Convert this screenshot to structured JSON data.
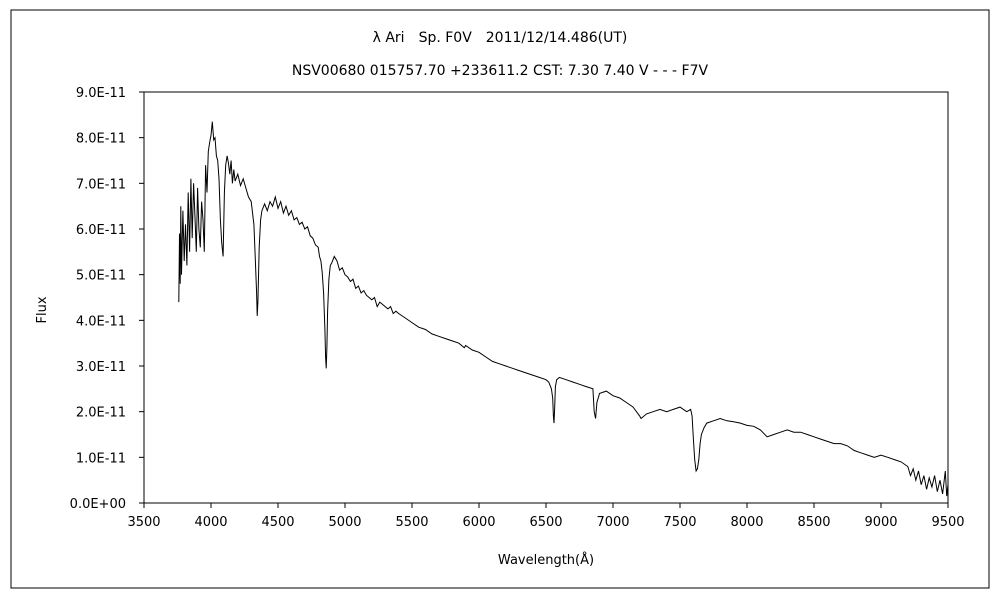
{
  "chart_data": {
    "type": "line",
    "title": "λ Ari　Sp. F0V　2011/12/14.486(UT)",
    "subtitle": "NSV00680 015757.70 +233611.2 CST: 7.30 7.40 V - - - F7V",
    "xlabel": "Wavelength(Å)",
    "ylabel": "Flux",
    "xlim": [
      3500,
      9500
    ],
    "ylim": [
      0,
      9e-11
    ],
    "grid": false,
    "legend": "none",
    "x_ticks": [
      3500,
      4000,
      4500,
      5000,
      5500,
      6000,
      6500,
      7000,
      7500,
      8000,
      8500,
      9000,
      9500
    ],
    "x_tick_labels": [
      "3500",
      "4000",
      "4500",
      "5000",
      "5500",
      "6000",
      "6500",
      "7000",
      "7500",
      "8000",
      "8500",
      "9000",
      "9500"
    ],
    "y_ticks": [
      0,
      1e-11,
      2e-11,
      3e-11,
      4e-11,
      5e-11,
      6e-11,
      7e-11,
      8e-11,
      9e-11
    ],
    "y_tick_labels": [
      "0.0E+00",
      "1.0E-11",
      "2.0E-11",
      "3.0E-11",
      "4.0E-11",
      "5.0E-11",
      "6.0E-11",
      "7.0E-11",
      "8.0E-11",
      "9.0E-11"
    ],
    "line_color": "#000000",
    "series": [
      {
        "x": [
          3760,
          3765,
          3770,
          3775,
          3780,
          3790,
          3800,
          3810,
          3820,
          3830,
          3840,
          3850,
          3860,
          3870,
          3880,
          3890,
          3900,
          3910,
          3920,
          3930,
          3940,
          3950,
          3960,
          3970,
          3980,
          3990,
          4000,
          4010,
          4020,
          4030,
          4040,
          4050,
          4060,
          4070,
          4080,
          4090,
          4100,
          4110,
          4120,
          4130,
          4140,
          4150,
          4160,
          4170,
          4180,
          4200,
          4220,
          4240,
          4260,
          4280,
          4300,
          4320,
          4330,
          4340,
          4345,
          4350,
          4360,
          4370,
          4380,
          4400,
          4420,
          4440,
          4460,
          4480,
          4500,
          4520,
          4540,
          4560,
          4580,
          4600,
          4620,
          4640,
          4660,
          4680,
          4700,
          4720,
          4740,
          4760,
          4780,
          4800,
          4810,
          4820,
          4830,
          4840,
          4850,
          4855,
          4860,
          4865,
          4870,
          4880,
          4890,
          4900,
          4920,
          4940,
          4960,
          4980,
          5000,
          5020,
          5040,
          5060,
          5080,
          5100,
          5120,
          5140,
          5160,
          5180,
          5200,
          5220,
          5240,
          5260,
          5280,
          5300,
          5320,
          5340,
          5360,
          5380,
          5400,
          5450,
          5500,
          5550,
          5600,
          5650,
          5700,
          5750,
          5800,
          5850,
          5890,
          5900,
          5950,
          6000,
          6050,
          6100,
          6150,
          6200,
          6250,
          6300,
          6350,
          6400,
          6450,
          6500,
          6520,
          6540,
          6550,
          6555,
          6560,
          6565,
          6570,
          6580,
          6600,
          6650,
          6700,
          6750,
          6800,
          6850,
          6860,
          6870,
          6880,
          6900,
          6950,
          7000,
          7050,
          7100,
          7150,
          7200,
          7210,
          7250,
          7300,
          7350,
          7400,
          7450,
          7500,
          7550,
          7580,
          7590,
          7600,
          7610,
          7620,
          7630,
          7640,
          7650,
          7660,
          7680,
          7700,
          7750,
          7800,
          7850,
          7900,
          7950,
          8000,
          8050,
          8100,
          8150,
          8200,
          8250,
          8300,
          8350,
          8400,
          8450,
          8500,
          8550,
          8600,
          8650,
          8700,
          8750,
          8800,
          8850,
          8900,
          8950,
          9000,
          9050,
          9100,
          9150,
          9200,
          9220,
          9240,
          9260,
          9280,
          9300,
          9320,
          9340,
          9360,
          9380,
          9400,
          9420,
          9440,
          9460,
          9480,
          9490,
          9500
        ],
        "y": [
          4.4e-11,
          5.9e-11,
          4.8e-11,
          6.5e-11,
          5e-11,
          6.4e-11,
          5.3e-11,
          6.1e-11,
          5.2e-11,
          6.8e-11,
          5.5e-11,
          7.1e-11,
          5.8e-11,
          7e-11,
          6.3e-11,
          5.5e-11,
          6.9e-11,
          6e-11,
          5.6e-11,
          6.6e-11,
          6.2e-11,
          5.5e-11,
          7.4e-11,
          6.8e-11,
          7.7e-11,
          7.9e-11,
          8.05e-11,
          8.35e-11,
          7.95e-11,
          8e-11,
          7.6e-11,
          7.5e-11,
          7.1e-11,
          6.2e-11,
          5.7e-11,
          5.4e-11,
          6.8e-11,
          7.4e-11,
          7.6e-11,
          7.45e-11,
          7.2e-11,
          7.5e-11,
          7e-11,
          7.3e-11,
          7.05e-11,
          7.2e-11,
          6.95e-11,
          7.1e-11,
          6.9e-11,
          6.7e-11,
          6.6e-11,
          6.1e-11,
          5.4e-11,
          4.6e-11,
          4.1e-11,
          4.4e-11,
          5.6e-11,
          6.2e-11,
          6.4e-11,
          6.55e-11,
          6.4e-11,
          6.6e-11,
          6.5e-11,
          6.7e-11,
          6.45e-11,
          6.6e-11,
          6.35e-11,
          6.5e-11,
          6.3e-11,
          6.4e-11,
          6.2e-11,
          6.25e-11,
          6.1e-11,
          6.15e-11,
          6e-11,
          6.05e-11,
          5.85e-11,
          5.8e-11,
          5.65e-11,
          5.6e-11,
          5.4e-11,
          5.3e-11,
          5.05e-11,
          4.6e-11,
          3.8e-11,
          3.2e-11,
          2.95e-11,
          3.4e-11,
          4.2e-11,
          4.9e-11,
          5.2e-11,
          5.25e-11,
          5.4e-11,
          5.3e-11,
          5.1e-11,
          5.15e-11,
          5e-11,
          4.95e-11,
          4.85e-11,
          4.9e-11,
          4.7e-11,
          4.75e-11,
          4.6e-11,
          4.65e-11,
          4.55e-11,
          4.5e-11,
          4.45e-11,
          4.5e-11,
          4.3e-11,
          4.4e-11,
          4.35e-11,
          4.3e-11,
          4.25e-11,
          4.3e-11,
          4.15e-11,
          4.2e-11,
          4.15e-11,
          4.05e-11,
          3.95e-11,
          3.85e-11,
          3.8e-11,
          3.7e-11,
          3.65e-11,
          3.6e-11,
          3.55e-11,
          3.5e-11,
          3.4e-11,
          3.45e-11,
          3.35e-11,
          3.3e-11,
          3.2e-11,
          3.1e-11,
          3.05e-11,
          3e-11,
          2.95e-11,
          2.9e-11,
          2.85e-11,
          2.8e-11,
          2.75e-11,
          2.7e-11,
          2.65e-11,
          2.5e-11,
          2.3e-11,
          1.9e-11,
          1.75e-11,
          2.1e-11,
          2.55e-11,
          2.7e-11,
          2.75e-11,
          2.7e-11,
          2.65e-11,
          2.6e-11,
          2.55e-11,
          2.5e-11,
          2e-11,
          1.85e-11,
          2.2e-11,
          2.4e-11,
          2.45e-11,
          2.35e-11,
          2.3e-11,
          2.2e-11,
          2.1e-11,
          1.9e-11,
          1.85e-11,
          1.95e-11,
          2e-11,
          2.05e-11,
          2e-11,
          2.05e-11,
          2.1e-11,
          2e-11,
          2.05e-11,
          1.9e-11,
          1.4e-11,
          9.5e-12,
          7e-12,
          7.5e-12,
          9.5e-12,
          1.3e-11,
          1.5e-11,
          1.65e-11,
          1.75e-11,
          1.8e-11,
          1.85e-11,
          1.8e-11,
          1.78e-11,
          1.75e-11,
          1.7e-11,
          1.68e-11,
          1.6e-11,
          1.45e-11,
          1.5e-11,
          1.55e-11,
          1.6e-11,
          1.55e-11,
          1.55e-11,
          1.5e-11,
          1.45e-11,
          1.4e-11,
          1.35e-11,
          1.3e-11,
          1.3e-11,
          1.25e-11,
          1.15e-11,
          1.1e-11,
          1.05e-11,
          1e-11,
          1.05e-11,
          1e-11,
          9.5e-12,
          9e-12,
          8e-12,
          6e-12,
          7.5e-12,
          5e-12,
          7e-12,
          4e-12,
          6e-12,
          3e-12,
          5.5e-12,
          3.5e-12,
          6e-12,
          2.5e-12,
          5e-12,
          2e-12,
          7e-12,
          1.5e-12,
          4e-12
        ]
      }
    ]
  }
}
